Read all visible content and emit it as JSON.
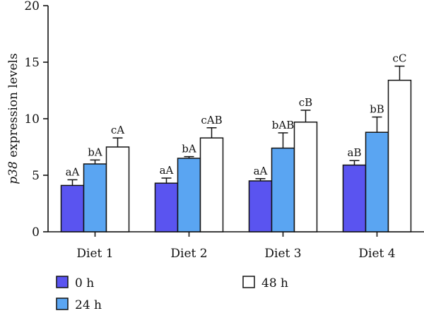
{
  "chart_data": {
    "type": "bar",
    "ylabel_italic": "p38",
    "ylabel_rest": " expression levels",
    "ylim": [
      0,
      20
    ],
    "yticks": [
      0,
      5,
      10,
      15,
      20
    ],
    "grid": false,
    "legend_position": "bottom",
    "categories": [
      "Diet 1",
      "Diet 2",
      "Diet 3",
      "Diet 4"
    ],
    "series": [
      {
        "name": "0 h",
        "color": "#5a54f0",
        "values": [
          4.1,
          4.3,
          4.5,
          5.9
        ],
        "errors": [
          0.5,
          0.45,
          0.2,
          0.4
        ],
        "labels": [
          "aA",
          "aA",
          "aA",
          "aB"
        ]
      },
      {
        "name": "24 h",
        "color": "#5aa5f2",
        "values": [
          6.0,
          6.5,
          7.4,
          8.8
        ],
        "errors": [
          0.35,
          0.15,
          1.35,
          1.35
        ],
        "labels": [
          "bA",
          "bA",
          "bAB",
          "bB"
        ]
      },
      {
        "name": "48 h",
        "color": "#ffffff",
        "values": [
          7.5,
          8.3,
          9.7,
          13.4
        ],
        "errors": [
          0.8,
          0.9,
          1.05,
          1.25
        ],
        "labels": [
          "cA",
          "cAB",
          "cB",
          "cC"
        ]
      }
    ]
  }
}
